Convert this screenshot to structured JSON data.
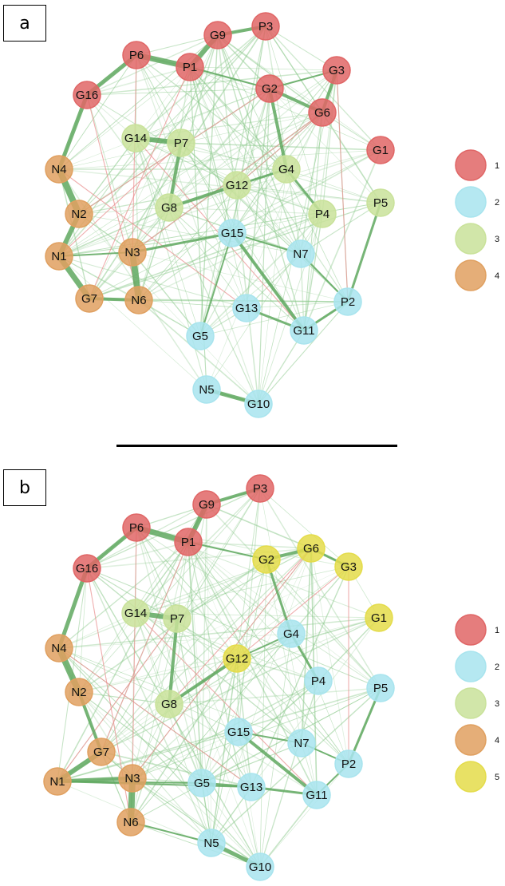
{
  "panels": [
    {
      "label": "a",
      "clusters": {
        "1": "#e06666",
        "2": "#a8e4ee",
        "3": "#c9e29a",
        "4": "#e0a060"
      },
      "legend": [
        "1",
        "2",
        "3",
        "4"
      ],
      "nodes": [
        {
          "id": "P3",
          "c": "1"
        },
        {
          "id": "G9",
          "c": "1"
        },
        {
          "id": "P6",
          "c": "1"
        },
        {
          "id": "P1",
          "c": "1"
        },
        {
          "id": "G3",
          "c": "1"
        },
        {
          "id": "G2",
          "c": "1"
        },
        {
          "id": "G16",
          "c": "1"
        },
        {
          "id": "G6",
          "c": "1"
        },
        {
          "id": "G1",
          "c": "1"
        },
        {
          "id": "G14",
          "c": "3"
        },
        {
          "id": "P7",
          "c": "3"
        },
        {
          "id": "G4",
          "c": "3"
        },
        {
          "id": "N4",
          "c": "4"
        },
        {
          "id": "G12",
          "c": "3"
        },
        {
          "id": "G8",
          "c": "3"
        },
        {
          "id": "N2",
          "c": "4"
        },
        {
          "id": "P4",
          "c": "3"
        },
        {
          "id": "P5",
          "c": "3"
        },
        {
          "id": "G15",
          "c": "2"
        },
        {
          "id": "N7",
          "c": "2"
        },
        {
          "id": "N1",
          "c": "4"
        },
        {
          "id": "N3",
          "c": "4"
        },
        {
          "id": "P2",
          "c": "2"
        },
        {
          "id": "G13",
          "c": "2"
        },
        {
          "id": "G7",
          "c": "4"
        },
        {
          "id": "N6",
          "c": "4"
        },
        {
          "id": "G11",
          "c": "2"
        },
        {
          "id": "G5",
          "c": "2"
        },
        {
          "id": "N5",
          "c": "2"
        },
        {
          "id": "G10",
          "c": "2"
        }
      ]
    },
    {
      "label": "b",
      "clusters": {
        "1": "#e06666",
        "2": "#a8e4ee",
        "3": "#c9e29a",
        "4": "#e0a060",
        "5": "#e4dc4a"
      },
      "legend": [
        "1",
        "2",
        "3",
        "4",
        "5"
      ],
      "nodes": [
        {
          "id": "P3",
          "c": "1"
        },
        {
          "id": "G9",
          "c": "1"
        },
        {
          "id": "P6",
          "c": "1"
        },
        {
          "id": "P1",
          "c": "1"
        },
        {
          "id": "G6",
          "c": "5"
        },
        {
          "id": "G2",
          "c": "5"
        },
        {
          "id": "G3",
          "c": "5"
        },
        {
          "id": "G16",
          "c": "1"
        },
        {
          "id": "G1",
          "c": "5"
        },
        {
          "id": "G14",
          "c": "3"
        },
        {
          "id": "P7",
          "c": "3"
        },
        {
          "id": "G4",
          "c": "2"
        },
        {
          "id": "N4",
          "c": "4"
        },
        {
          "id": "G12",
          "c": "5"
        },
        {
          "id": "P4",
          "c": "2"
        },
        {
          "id": "P5",
          "c": "2"
        },
        {
          "id": "N2",
          "c": "4"
        },
        {
          "id": "G8",
          "c": "3"
        },
        {
          "id": "G15",
          "c": "2"
        },
        {
          "id": "N7",
          "c": "2"
        },
        {
          "id": "G7",
          "c": "4"
        },
        {
          "id": "P2",
          "c": "2"
        },
        {
          "id": "N1",
          "c": "4"
        },
        {
          "id": "N3",
          "c": "4"
        },
        {
          "id": "G5",
          "c": "2"
        },
        {
          "id": "G13",
          "c": "2"
        },
        {
          "id": "G11",
          "c": "2"
        },
        {
          "id": "N6",
          "c": "4"
        },
        {
          "id": "N5",
          "c": "2"
        },
        {
          "id": "G10",
          "c": "2"
        }
      ]
    }
  ]
}
